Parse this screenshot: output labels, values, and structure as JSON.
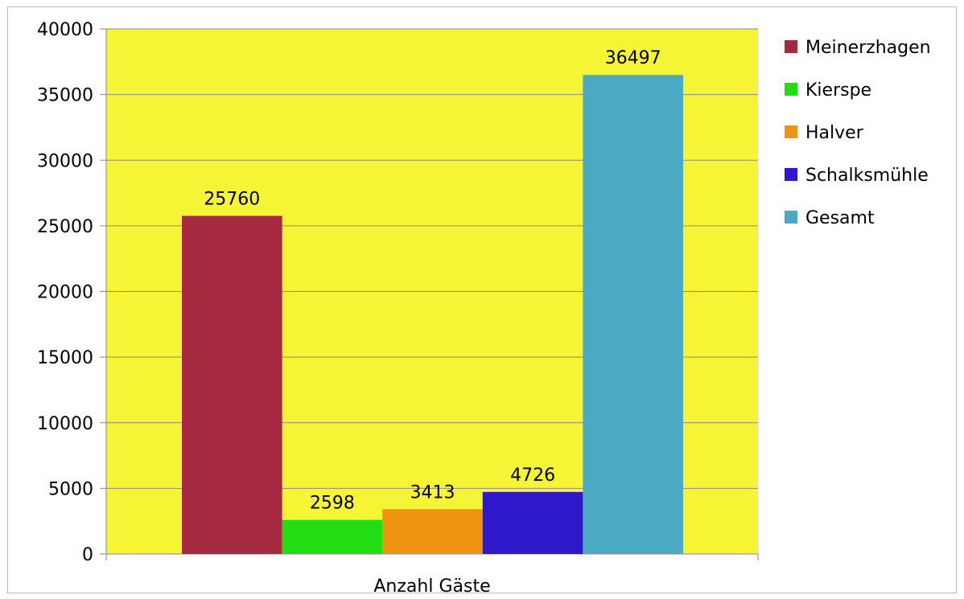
{
  "chart_data": {
    "type": "bar",
    "categories": [
      "Anzahl Gäste"
    ],
    "series": [
      {
        "name": "Meinerzhagen",
        "values": [
          25760
        ],
        "color": "#A52A40"
      },
      {
        "name": "Kierspe",
        "values": [
          2598
        ],
        "color": "#22DD11"
      },
      {
        "name": "Halver",
        "values": [
          3413
        ],
        "color": "#EE9410"
      },
      {
        "name": "Schalksmühle",
        "values": [
          4726
        ],
        "color": "#2E18CC"
      },
      {
        "name": "Gesamt",
        "values": [
          36497
        ],
        "color": "#4AAAC4"
      }
    ],
    "data_labels": [
      "25760",
      "2598",
      "3413",
      "4726",
      "36497"
    ],
    "y_ticks": [
      "0",
      "5000",
      "10000",
      "15000",
      "20000",
      "25000",
      "30000",
      "35000",
      "40000"
    ],
    "ylim": [
      0,
      40000
    ],
    "grid": true,
    "legend_position": "right",
    "plot_background": "#F5F535",
    "gridline_color": "#8a8a8a"
  }
}
